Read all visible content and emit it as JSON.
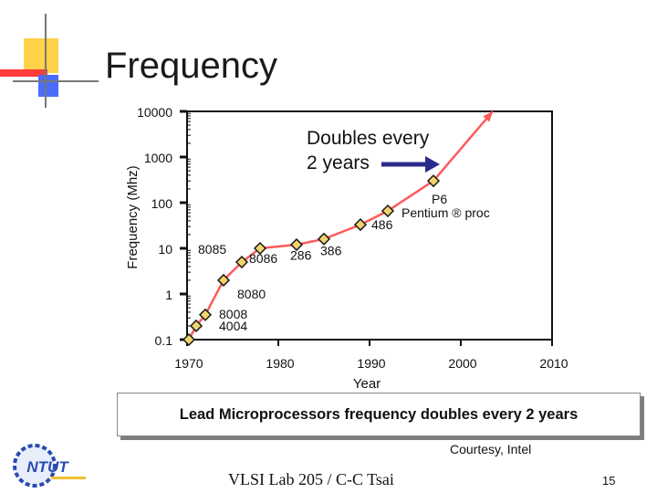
{
  "slide": {
    "title": "Frequency",
    "caption": "Lead Microprocessors frequency doubles every 2 years",
    "courtesy": "Courtesy, Intel",
    "footer": "VLSI Lab 205 / C-C Tsai",
    "page_number": "15",
    "logo_text": "NTUT"
  },
  "annotation": {
    "line1": "Doubles every",
    "line2": "2 years"
  },
  "colors": {
    "line": "#ff5a5a",
    "marker_fill": "#f2d46a",
    "marker_stroke": "#1a1a1a",
    "deco_yellow": "#ffd24a",
    "deco_red": "#ff3b3b",
    "deco_blue": "#4a6cff",
    "axis": "#111111"
  },
  "chart_data": {
    "type": "line",
    "title": "",
    "xlabel": "Year",
    "ylabel": "Frequency (Mhz)",
    "yscale": "log",
    "xlim": [
      1970,
      2010
    ],
    "ylim": [
      0.1,
      10000
    ],
    "x_ticks": [
      "1970",
      "1980",
      "1990",
      "2000",
      "2010"
    ],
    "y_ticks": [
      "0.1",
      "1",
      "10",
      "100",
      "1000",
      "10000"
    ],
    "series": [
      {
        "name": "Lead microprocessor frequency",
        "points": [
          {
            "x": 1970.2,
            "y": 0.1
          },
          {
            "x": 1971.0,
            "y": 0.2
          },
          {
            "x": 1972.0,
            "y": 0.35
          },
          {
            "x": 1974.0,
            "y": 2.0
          },
          {
            "x": 1976.0,
            "y": 5.0
          },
          {
            "x": 1978.0,
            "y": 10.0
          },
          {
            "x": 1982.0,
            "y": 12.0
          },
          {
            "x": 1985.0,
            "y": 16.0
          },
          {
            "x": 1989.0,
            "y": 33.0
          },
          {
            "x": 1992.0,
            "y": 66.0
          },
          {
            "x": 1997.0,
            "y": 300.0
          },
          {
            "x": 2003.5,
            "y": 10000.0
          }
        ],
        "markers": [
          {
            "x": 1970.2,
            "y": 0.1
          },
          {
            "x": 1971.0,
            "y": 0.2
          },
          {
            "x": 1972.0,
            "y": 0.35
          },
          {
            "x": 1974.0,
            "y": 2.0
          },
          {
            "x": 1976.0,
            "y": 5.0
          },
          {
            "x": 1978.0,
            "y": 10.0
          },
          {
            "x": 1982.0,
            "y": 12.0
          },
          {
            "x": 1985.0,
            "y": 16.0
          },
          {
            "x": 1989.0,
            "y": 33.0
          },
          {
            "x": 1992.0,
            "y": 66.0
          },
          {
            "x": 1997.0,
            "y": 300.0
          }
        ]
      }
    ],
    "point_labels": [
      {
        "text": "4004",
        "x": 1973.5,
        "y": 0.2
      },
      {
        "text": "8008",
        "x": 1973.5,
        "y": 0.36
      },
      {
        "text": "8080",
        "x": 1975.5,
        "y": 1.0
      },
      {
        "text": "8085",
        "x": 1971.2,
        "y": 9.5
      },
      {
        "text": "8086",
        "x": 1976.8,
        "y": 6.0
      },
      {
        "text": "286",
        "x": 1981.3,
        "y": 7.0
      },
      {
        "text": "386",
        "x": 1984.6,
        "y": 9.0
      },
      {
        "text": "486",
        "x": 1990.2,
        "y": 33.0
      },
      {
        "text": "P6",
        "x": 1996.8,
        "y": 120.0
      },
      {
        "text": "Pentium ® proc",
        "x": 1993.5,
        "y": 60.0
      }
    ]
  }
}
